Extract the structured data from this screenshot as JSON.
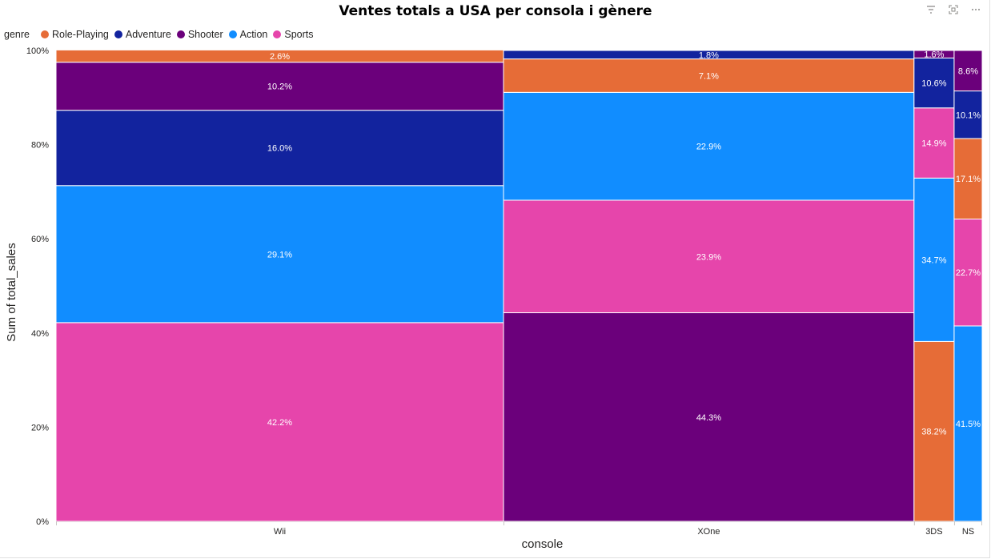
{
  "visual": {
    "icons": [
      "filter-icon",
      "focus-mode-icon",
      "more-options-icon"
    ]
  },
  "chart_data": {
    "type": "bar",
    "subtype": "100% stacked column (variable width)",
    "title": "Ventes totals a USA per consola i gènere",
    "xlabel": "console",
    "ylabel": "Sum of total_sales",
    "legend_title": "genre",
    "legend_position": "top-left",
    "y_ticks": [
      "0%",
      "20%",
      "40%",
      "60%",
      "80%",
      "100%"
    ],
    "ylim": [
      0,
      100
    ],
    "grid": false,
    "genres": [
      {
        "name": "Role-Playing",
        "color": "#E66C37"
      },
      {
        "name": "Adventure",
        "color": "#12239E"
      },
      {
        "name": "Shooter",
        "color": "#6B007B"
      },
      {
        "name": "Action",
        "color": "#118DFF"
      },
      {
        "name": "Sports",
        "color": "#E645AB"
      }
    ],
    "columns": [
      {
        "console": "Wii",
        "share_of_total_width": 0.5245,
        "segments": [
          {
            "genre": "Sports",
            "value": 42.2,
            "label": "42.2%"
          },
          {
            "genre": "Action",
            "value": 29.1,
            "label": "29.1%"
          },
          {
            "genre": "Adventure",
            "value": 16.0,
            "label": "16.0%"
          },
          {
            "genre": "Shooter",
            "value": 10.2,
            "label": "10.2%"
          },
          {
            "genre": "Role-Playing",
            "value": 2.6,
            "label": "2.6%"
          }
        ]
      },
      {
        "console": "XOne",
        "share_of_total_width": 0.4812,
        "segments": [
          {
            "genre": "Shooter",
            "value": 44.3,
            "label": "44.3%"
          },
          {
            "genre": "Sports",
            "value": 23.9,
            "label": "23.9%"
          },
          {
            "genre": "Action",
            "value": 22.9,
            "label": "22.9%"
          },
          {
            "genre": "Role-Playing",
            "value": 7.1,
            "label": "7.1%"
          },
          {
            "genre": "Adventure",
            "value": 1.8,
            "label": "1.8%"
          }
        ]
      },
      {
        "console": "3DS",
        "share_of_total_width": 0.047,
        "segments": [
          {
            "genre": "Role-Playing",
            "value": 38.2,
            "label": "38.2%"
          },
          {
            "genre": "Action",
            "value": 34.7,
            "label": "34.7%"
          },
          {
            "genre": "Sports",
            "value": 14.9,
            "label": "14.9%"
          },
          {
            "genre": "Adventure",
            "value": 10.6,
            "label": "10.6%"
          },
          {
            "genre": "Shooter",
            "value": 1.6,
            "label": "1.6%"
          }
        ]
      },
      {
        "console": "NS",
        "share_of_total_width": 0.0329,
        "segments": [
          {
            "genre": "Action",
            "value": 41.5,
            "label": "41.5%"
          },
          {
            "genre": "Sports",
            "value": 22.7,
            "label": "22.7%"
          },
          {
            "genre": "Role-Playing",
            "value": 17.1,
            "label": "17.1%"
          },
          {
            "genre": "Adventure",
            "value": 10.1,
            "label": "10.1%"
          },
          {
            "genre": "Shooter",
            "value": 8.6,
            "label": "8.6%"
          }
        ]
      }
    ]
  }
}
